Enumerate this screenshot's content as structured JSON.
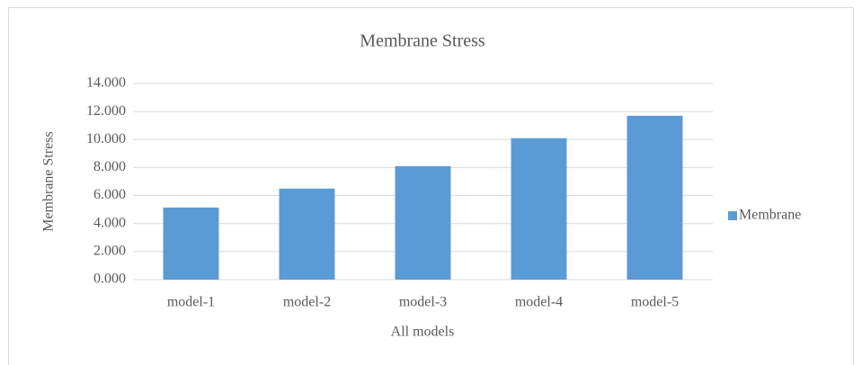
{
  "chart_data": {
    "type": "bar",
    "title": "Membrane Stress",
    "x_label": "All models",
    "y_label": "Membrane  Stress",
    "categories": [
      "model-1",
      "model-2",
      "model-3",
      "model-4",
      "model-5"
    ],
    "series": [
      {
        "name": "Membrane",
        "color": "#5b9bd5",
        "values": [
          5.15,
          6.5,
          8.1,
          10.1,
          11.7
        ]
      }
    ],
    "ylim": [
      0,
      14
    ],
    "yticks": [
      {
        "value": 0,
        "label": "0.000"
      },
      {
        "value": 2,
        "label": "2.000"
      },
      {
        "value": 4,
        "label": "4.000"
      },
      {
        "value": 6,
        "label": "6.000"
      },
      {
        "value": 8,
        "label": "8.000"
      },
      {
        "value": 10,
        "label": "10.000"
      },
      {
        "value": 12,
        "label": "12.000"
      },
      {
        "value": 14,
        "label": "14.000"
      }
    ],
    "grid": true,
    "legend": "right"
  }
}
